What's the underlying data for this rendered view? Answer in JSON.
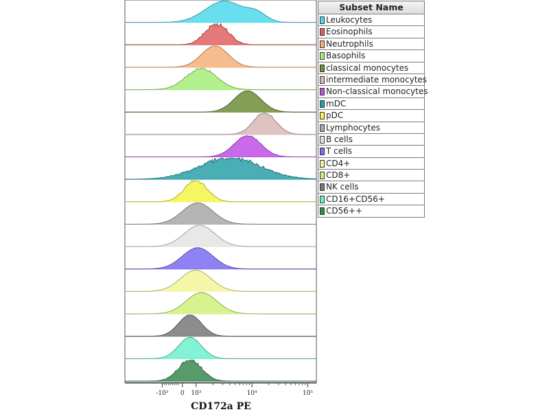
{
  "chart_data": {
    "type": "histogram-overlay",
    "xlabel": "CD172a PE",
    "x_scale": "biexponential",
    "x_ticks": [
      {
        "value": -1000,
        "label": "-10³"
      },
      {
        "value": 0,
        "label": "0"
      },
      {
        "value": 1000,
        "label": "10³"
      },
      {
        "value": 10000,
        "label": "10⁴"
      },
      {
        "value": 100000,
        "label": "10⁵"
      }
    ],
    "legend_title": "Subset Name",
    "legend_position": "right",
    "series": [
      {
        "name": "Leukocytes",
        "color": "#4dd9ec",
        "peaks": [
          {
            "x": 0.52,
            "w": 0.1,
            "h": 1.0
          },
          {
            "x": 0.69,
            "w": 0.05,
            "h": 0.35
          }
        ],
        "noise": 0.02
      },
      {
        "name": "Eosinophils",
        "color": "#e06060",
        "peaks": [
          {
            "x": 0.48,
            "w": 0.06,
            "h": 1.0
          }
        ],
        "noise": 0.25
      },
      {
        "name": "Neutrophils",
        "color": "#f4b07a",
        "peaks": [
          {
            "x": 0.47,
            "w": 0.07,
            "h": 1.0
          }
        ],
        "noise": 0.0
      },
      {
        "name": "Basophils",
        "color": "#a4ee7a",
        "peaks": [
          {
            "x": 0.4,
            "w": 0.08,
            "h": 1.0
          }
        ],
        "noise": 0.12
      },
      {
        "name": "classical monocytes",
        "color": "#6e8c3a",
        "peaks": [
          {
            "x": 0.64,
            "w": 0.07,
            "h": 1.0
          }
        ],
        "noise": 0.0
      },
      {
        "name": "intermediate monocytes",
        "color": "#d9b8b8",
        "peaks": [
          {
            "x": 0.73,
            "w": 0.06,
            "h": 1.0
          }
        ],
        "noise": 0.12
      },
      {
        "name": "Non-classical monocytes",
        "color": "#c050e8",
        "peaks": [
          {
            "x": 0.64,
            "w": 0.07,
            "h": 1.0
          }
        ],
        "noise": 0.08
      },
      {
        "name": "mDC",
        "color": "#2aa0a8",
        "peaks": [
          {
            "x": 0.55,
            "w": 0.16,
            "h": 1.0
          }
        ],
        "noise": 0.25
      },
      {
        "name": "pDC",
        "color": "#f4f44a",
        "peaks": [
          {
            "x": 0.37,
            "w": 0.06,
            "h": 1.0
          }
        ],
        "noise": 0.18
      },
      {
        "name": "Lymphocytes",
        "color": "#a8a8a8",
        "peaks": [
          {
            "x": 0.38,
            "w": 0.08,
            "h": 1.0
          }
        ],
        "noise": 0.0
      },
      {
        "name": "B cells",
        "color": "#e4e4e4",
        "peaks": [
          {
            "x": 0.39,
            "w": 0.08,
            "h": 1.0
          }
        ],
        "noise": 0.02
      },
      {
        "name": "T cells",
        "color": "#7b6cf2",
        "peaks": [
          {
            "x": 0.38,
            "w": 0.08,
            "h": 1.0
          }
        ],
        "noise": 0.0
      },
      {
        "name": "CD4+",
        "color": "#f4f49a",
        "peaks": [
          {
            "x": 0.37,
            "w": 0.08,
            "h": 1.0
          }
        ],
        "noise": 0.0
      },
      {
        "name": "CD8+",
        "color": "#d0f07a",
        "peaks": [
          {
            "x": 0.4,
            "w": 0.08,
            "h": 1.0
          }
        ],
        "noise": 0.0
      },
      {
        "name": "NK cells",
        "color": "#787878",
        "peaks": [
          {
            "x": 0.34,
            "w": 0.06,
            "h": 1.0
          }
        ],
        "noise": 0.02
      },
      {
        "name": "CD16+CD56+",
        "color": "#6ef0cc",
        "peaks": [
          {
            "x": 0.34,
            "w": 0.06,
            "h": 1.0
          }
        ],
        "noise": 0.02
      },
      {
        "name": "CD56++",
        "color": "#3a8a50",
        "peaks": [
          {
            "x": 0.34,
            "w": 0.06,
            "h": 1.0
          }
        ],
        "noise": 0.2
      }
    ]
  }
}
